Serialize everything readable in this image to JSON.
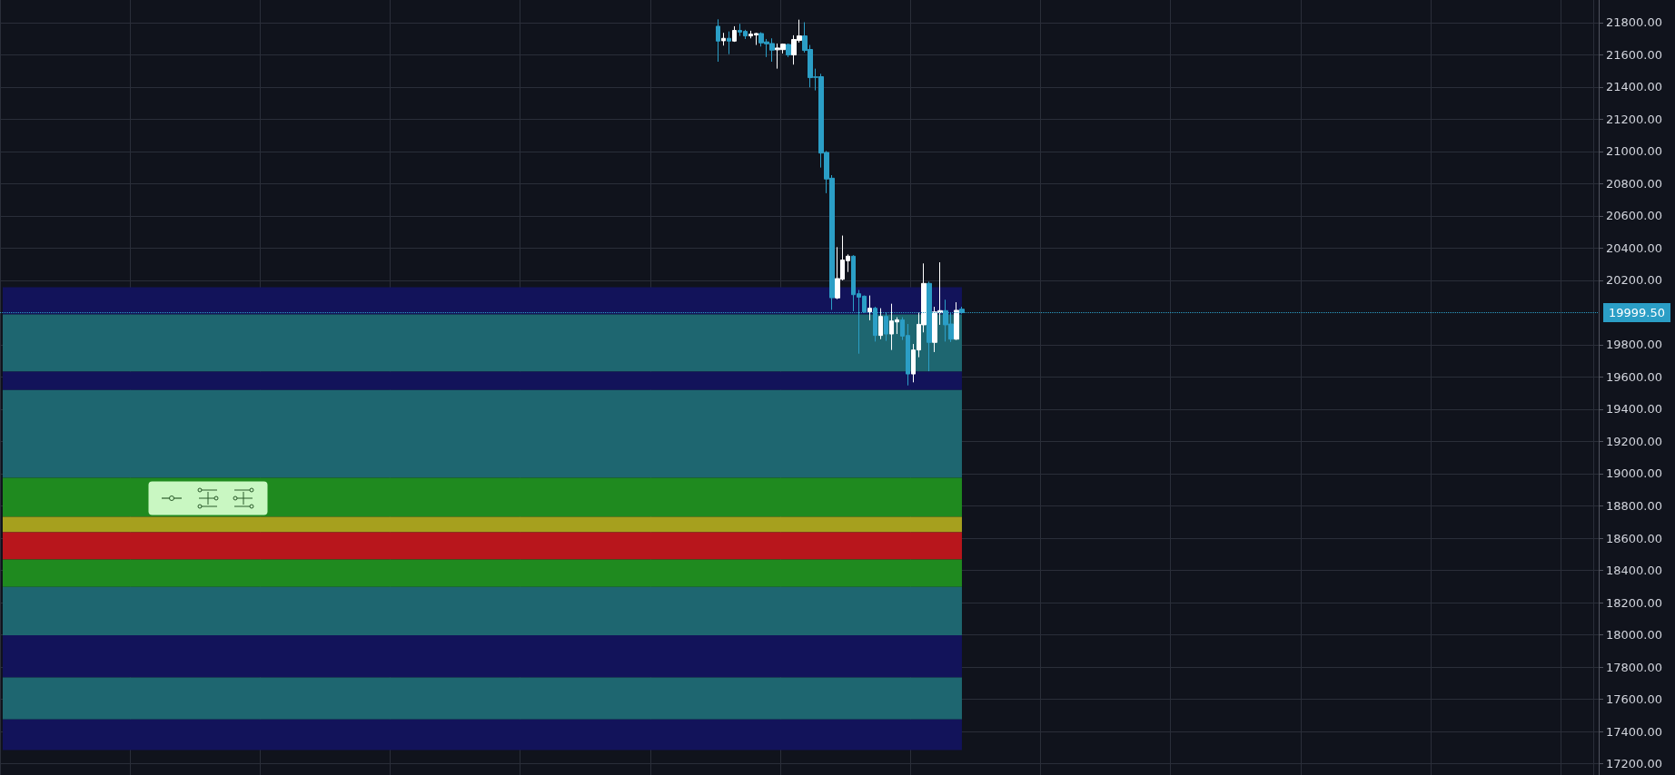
{
  "chart_data": {
    "type": "candlestick",
    "categories": [
      null,
      null,
      null,
      null,
      null,
      null,
      null,
      null,
      null,
      null,
      null,
      null,
      null,
      null,
      null,
      null,
      null,
      null,
      null,
      null,
      null,
      null,
      null,
      null,
      null,
      null,
      null,
      null,
      null,
      null,
      null,
      null,
      null,
      null,
      null,
      null,
      null,
      null,
      null,
      null,
      null,
      null,
      null,
      null,
      null,
      null,
      null,
      null,
      null,
      null,
      null,
      null,
      null,
      null,
      null,
      null,
      null,
      null,
      null,
      null,
      null,
      null,
      null,
      null,
      null,
      null,
      null,
      null,
      null,
      null,
      null,
      null,
      null,
      null,
      null,
      null,
      null,
      null,
      null,
      null,
      null,
      null,
      null,
      null,
      null,
      null,
      null,
      null,
      null,
      null,
      null,
      null,
      null,
      null,
      null,
      null,
      null,
      null,
      null,
      null,
      null,
      null,
      null,
      null,
      null,
      null,
      null,
      null,
      null,
      null,
      null,
      null,
      null,
      null,
      null,
      null,
      null,
      null,
      null,
      null,
      null,
      null,
      null,
      null,
      null,
      null,
      null,
      null,
      null,
      null,
      null,
      null,
      null,
      null,
      null,
      null,
      null,
      null,
      null,
      null,
      null,
      null,
      null,
      null,
      null,
      null,
      null,
      null,
      null,
      null,
      null,
      null,
      null,
      null,
      null,
      null,
      null,
      null,
      null,
      null,
      null,
      null,
      null,
      null,
      null,
      null,
      null,
      null,
      null,
      null,
      null,
      null,
      null,
      null,
      null,
      null,
      null,
      null,
      null,
      null,
      null,
      null,
      null,
      null,
      null,
      null,
      null,
      null,
      null,
      null,
      null,
      null,
      null,
      null,
      null,
      null,
      null,
      null,
      null,
      null,
      null,
      null,
      null,
      null,
      null,
      null,
      null,
      null,
      null,
      null,
      null,
      null,
      null,
      null,
      null,
      null,
      null,
      null,
      null,
      null,
      null,
      null,
      null,
      null,
      null,
      null,
      null,
      null,
      null,
      null,
      null,
      null,
      null,
      null,
      null,
      null,
      null,
      null,
      null,
      null,
      null,
      null,
      null,
      null,
      null,
      null,
      null,
      null,
      null,
      null,
      null,
      null,
      null,
      null,
      null,
      null,
      null,
      null,
      null,
      null,
      null,
      null,
      null,
      null,
      null,
      null,
      null,
      null,
      null,
      null,
      null,
      null,
      null,
      null,
      null,
      null,
      null,
      null,
      null,
      null,
      null,
      null,
      null,
      null,
      null,
      null,
      null,
      null,
      null,
      null,
      null,
      null,
      null,
      null,
      null
    ],
    "ohlc": [
      null,
      null,
      null,
      null,
      null,
      null,
      null,
      null,
      null,
      null,
      null,
      null,
      null,
      null,
      null,
      null,
      null,
      null,
      null,
      null,
      null,
      null,
      null,
      null,
      null,
      null,
      null,
      null,
      null,
      null,
      null,
      null,
      null,
      null,
      null,
      null,
      null,
      null,
      null,
      null,
      null,
      null,
      null,
      null,
      null,
      null,
      null,
      null,
      null,
      null,
      null,
      null,
      null,
      null,
      null,
      null,
      null,
      null,
      null,
      null,
      null,
      null,
      null,
      null,
      null,
      null,
      null,
      null,
      null,
      null,
      null,
      null,
      null,
      null,
      null,
      null,
      null,
      null,
      null,
      null,
      null,
      null,
      null,
      null,
      null,
      null,
      null,
      null,
      null,
      null,
      null,
      null,
      null,
      null,
      null,
      null,
      null,
      null,
      null,
      null,
      null,
      null,
      null,
      null,
      null,
      null,
      null,
      null,
      null,
      null,
      null,
      null,
      null,
      null,
      null,
      null,
      null,
      null,
      null,
      null,
      null,
      null,
      null,
      null,
      null,
      null,
      null,
      null,
      null,
      null,
      null,
      null,
      [
        21777,
        21820,
        21557,
        21685
      ],
      [
        21687,
        21736,
        21657,
        21702
      ],
      [
        21702,
        21745,
        21604,
        21685
      ],
      [
        21685,
        21777,
        21680,
        21751
      ],
      [
        21751,
        21792,
        21717,
        21741
      ],
      [
        21745,
        21755,
        21698,
        21717
      ],
      [
        21717,
        21749,
        21702,
        21728
      ],
      [
        21723,
        21736,
        21661,
        21732
      ],
      [
        21732,
        21740,
        21651,
        21674
      ],
      [
        21680,
        21698,
        21586,
        21668
      ],
      [
        21670,
        21702,
        21557,
        21629
      ],
      [
        21631,
        21670,
        21514,
        21642
      ],
      [
        21632,
        21670,
        21608,
        21666
      ],
      [
        21664,
        21670,
        21586,
        21599
      ],
      [
        21599,
        21721,
        21539,
        21695
      ],
      [
        21689,
        21818,
        21676,
        21717
      ],
      [
        21717,
        21802,
        21614,
        21627
      ],
      [
        21633,
        21661,
        21398,
        21458
      ],
      [
        21463,
        21514,
        21379,
        21460
      ],
      [
        21464,
        21482,
        20900,
        20990
      ],
      [
        20994,
        21003,
        20741,
        20829
      ],
      [
        20834,
        20853,
        20017,
        20092
      ],
      [
        20091,
        20406,
        20083,
        20211
      ],
      [
        20207,
        20478,
        20200,
        20326
      ],
      [
        20322,
        20361,
        20252,
        20350
      ],
      [
        20350,
        20356,
        20008,
        20111
      ],
      [
        20117,
        20140,
        19745,
        20096
      ],
      [
        20102,
        20106,
        19999,
        20004
      ],
      [
        20004,
        20106,
        19952,
        20027
      ],
      [
        20027,
        20036,
        19820,
        19858
      ],
      [
        19858,
        20027,
        19835,
        19976
      ],
      [
        19976,
        19999,
        19824,
        19867
      ],
      [
        19867,
        20055,
        19768,
        19948
      ],
      [
        19942,
        19971,
        19867,
        19955
      ],
      [
        19955,
        19971,
        19830,
        19854
      ],
      [
        19858,
        19929,
        19548,
        19619
      ],
      [
        19619,
        19805,
        19567,
        19768
      ],
      [
        19768,
        19999,
        19723,
        19927
      ],
      [
        19924,
        20305,
        19877,
        20181
      ],
      [
        20181,
        20192,
        19636,
        19815
      ],
      [
        19815,
        20036,
        19755,
        20004
      ],
      [
        19999,
        20312,
        19924,
        20012
      ],
      [
        20012,
        20080,
        19820,
        19924
      ],
      [
        19929,
        19999,
        19817,
        19835
      ],
      [
        19835,
        20064,
        19830,
        20014
      ],
      [
        20021,
        20036,
        19993,
        19999.5
      ],
      null,
      null,
      null,
      null,
      null,
      null,
      null,
      null,
      null,
      null,
      null,
      null,
      null,
      null,
      null,
      null,
      null,
      null,
      null,
      null,
      null,
      null,
      null,
      null,
      null,
      null,
      null,
      null,
      null,
      null,
      null,
      null,
      null,
      null,
      null,
      null,
      null,
      null,
      null,
      null,
      null,
      null,
      null,
      null,
      null,
      null,
      null,
      null,
      null,
      null,
      null,
      null,
      null,
      null,
      null,
      null,
      null,
      null,
      null,
      null,
      null,
      null,
      null,
      null,
      null,
      null,
      null,
      null,
      null,
      null,
      null,
      null,
      null,
      null,
      null,
      null,
      null,
      null,
      null,
      null,
      null,
      null,
      null,
      null,
      null,
      null,
      null,
      null,
      null,
      null,
      null,
      null,
      null,
      null,
      null,
      null,
      null,
      null,
      null,
      null,
      null,
      null,
      null,
      null,
      null,
      null,
      null,
      null,
      null,
      null,
      null,
      null,
      null,
      null,
      null,
      null,
      null
    ],
    "colors": [
      null,
      null,
      null,
      null,
      null,
      null,
      null,
      null,
      null,
      null,
      null,
      null,
      null,
      null,
      null,
      null,
      null,
      null,
      null,
      null,
      null,
      null,
      null,
      null,
      null,
      null,
      null,
      null,
      null,
      null,
      null,
      null,
      null,
      null,
      null,
      null,
      null,
      null,
      null,
      null,
      null,
      null,
      null,
      null,
      null,
      null,
      null,
      null,
      null,
      null,
      null,
      null,
      null,
      null,
      null,
      null,
      null,
      null,
      null,
      null,
      null,
      null,
      null,
      null,
      null,
      null,
      null,
      null,
      null,
      null,
      null,
      null,
      null,
      null,
      null,
      null,
      null,
      null,
      null,
      null,
      null,
      null,
      null,
      null,
      null,
      null,
      null,
      null,
      null,
      null,
      null,
      null,
      null,
      null,
      null,
      null,
      null,
      null,
      null,
      null,
      null,
      null,
      null,
      null,
      null,
      null,
      null,
      null,
      null,
      null,
      null,
      null,
      null,
      null,
      null,
      null,
      null,
      null,
      null,
      null,
      null,
      null,
      null,
      null,
      null,
      null,
      null,
      null,
      null,
      null,
      null,
      null,
      "#2b9ec6",
      "#ffffff",
      "#2b9ec6",
      "#ffffff",
      "#2b9ec6",
      "#2b9ec6",
      "#ffffff",
      "#ffffff",
      "#2b9ec6",
      "#2b9ec6",
      "#2b9ec6",
      "#ffffff",
      "#ffffff",
      "#2b9ec6",
      "#ffffff",
      "#ffffff",
      "#2b9ec6",
      "#2b9ec6",
      "#2b9ec6",
      "#2b9ec6",
      "#2b9ec6",
      "#2b9ec6",
      "#ffffff",
      "#ffffff",
      "#ffffff",
      "#2b9ec6",
      "#2b9ec6",
      "#2b9ec6",
      "#ffffff",
      "#2b9ec6",
      "#ffffff",
      "#2b9ec6",
      "#ffffff",
      "#ffffff",
      "#2b9ec6",
      "#2b9ec6",
      "#ffffff",
      "#ffffff",
      "#ffffff",
      "#2b9ec6",
      "#ffffff",
      "#ffffff",
      "#2b9ec6",
      "#2b9ec6",
      "#ffffff",
      "#2b9ec6",
      null,
      null,
      null,
      null,
      null,
      null,
      null,
      null,
      null,
      null,
      null,
      null,
      null,
      null,
      null,
      null,
      null,
      null,
      null,
      null,
      null,
      null,
      null,
      null,
      null,
      null,
      null,
      null,
      null,
      null,
      null,
      null,
      null,
      null,
      null,
      null,
      null,
      null,
      null,
      null,
      null,
      null,
      null,
      null,
      null,
      null,
      null,
      null,
      null,
      null,
      null,
      null,
      null,
      null,
      null,
      null,
      null,
      null,
      null,
      null,
      null,
      null,
      null,
      null,
      null,
      null,
      null,
      null,
      null,
      null,
      null,
      null,
      null,
      null,
      null,
      null,
      null,
      null,
      null,
      null,
      null,
      null,
      null,
      null,
      null,
      null,
      null,
      null,
      null,
      null,
      null,
      null,
      null,
      null,
      null,
      null,
      null,
      null,
      null,
      null,
      null,
      null,
      null,
      null,
      null,
      null,
      null,
      null,
      null,
      null,
      null,
      null,
      null,
      null,
      null,
      null,
      null
    ],
    "ylim": [
      17130,
      21940
    ],
    "yticks": [
      {
        "value": 17200,
        "label": "17200.00"
      },
      {
        "value": 17400,
        "label": "17400.00"
      },
      {
        "value": 17600,
        "label": "17600.00"
      },
      {
        "value": 17800,
        "label": "17800.00"
      },
      {
        "value": 18000,
        "label": "18000.00"
      },
      {
        "value": 18200,
        "label": "18200.00"
      },
      {
        "value": 18400,
        "label": "18400.00"
      },
      {
        "value": 18600,
        "label": "18600.00"
      },
      {
        "value": 18800,
        "label": "18800.00"
      },
      {
        "value": 19000,
        "label": "19000.00"
      },
      {
        "value": 19200,
        "label": "19200.00"
      },
      {
        "value": 19400,
        "label": "19400.00"
      },
      {
        "value": 19600,
        "label": "19600.00"
      },
      {
        "value": 19800,
        "label": "19800.00"
      },
      {
        "value": 20200,
        "label": "20200.00"
      },
      {
        "value": 20400,
        "label": "20400.00"
      },
      {
        "value": 20600,
        "label": "20600.00"
      },
      {
        "value": 20800,
        "label": "20800.00"
      },
      {
        "value": 21000,
        "label": "21000.00"
      },
      {
        "value": 21200,
        "label": "21200.00"
      },
      {
        "value": 21400,
        "label": "21400.00"
      },
      {
        "value": 21600,
        "label": "21600.00"
      },
      {
        "value": 21800,
        "label": "21800.00"
      }
    ],
    "ref_lines": [
      {
        "axis": "y",
        "value": 19999.5,
        "label": "19999.50",
        "color": "#2b9ec6",
        "line_style": "dotted"
      }
    ],
    "bands": [
      {
        "axis": "y",
        "from": 19988,
        "to": 20157,
        "color": "#12135a"
      },
      {
        "axis": "y",
        "from": 19633,
        "to": 19988,
        "color": "#1e6670"
      },
      {
        "axis": "y",
        "from": 19520,
        "to": 19633,
        "color": "#12135a"
      },
      {
        "axis": "y",
        "from": 18974,
        "to": 19520,
        "color": "#1e6670"
      },
      {
        "axis": "y",
        "from": 18732,
        "to": 18974,
        "color": "#1f8a1f"
      },
      {
        "axis": "y",
        "from": 18636,
        "to": 18732,
        "color": "#a6a01e"
      },
      {
        "axis": "y",
        "from": 18467,
        "to": 18636,
        "color": "#b8161c"
      },
      {
        "axis": "y",
        "from": 18297,
        "to": 18467,
        "color": "#1f8a1f"
      },
      {
        "axis": "y",
        "from": 17998,
        "to": 18297,
        "color": "#1e6670"
      },
      {
        "axis": "y",
        "from": 17735,
        "to": 17998,
        "color": "#12135a"
      },
      {
        "axis": "y",
        "from": 17475,
        "to": 17735,
        "color": "#1e6670"
      },
      {
        "axis": "y",
        "from": 17285,
        "to": 17475,
        "color": "#12135a"
      }
    ],
    "grid": true,
    "tick_labels": "y"
  }
}
